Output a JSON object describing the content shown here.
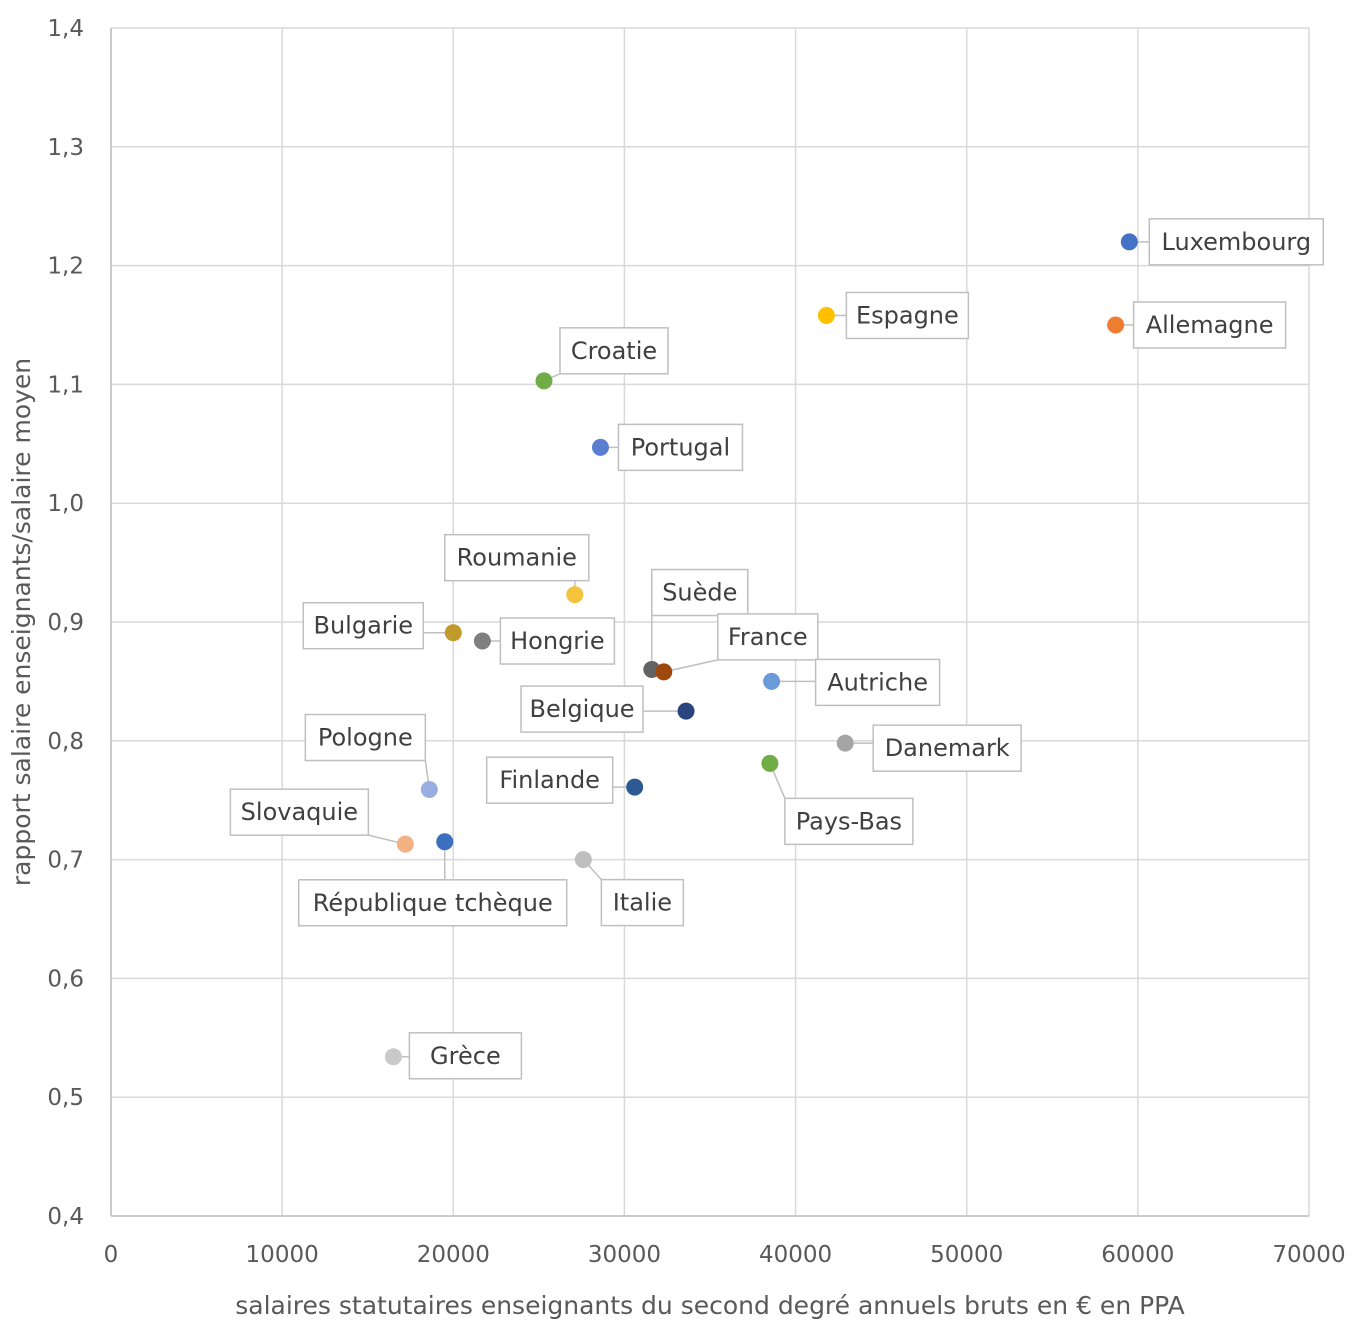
{
  "chart_data": {
    "type": "scatter",
    "title": "",
    "xlabel": "salaires statutaires enseignants du second degré annuels bruts en € en PPA",
    "ylabel": "rapport salaire enseignants/salaire moyen",
    "xlim": [
      0,
      70000
    ],
    "ylim": [
      0.4,
      1.4
    ],
    "grid": true,
    "legend": "none",
    "x_ticks": [
      "0",
      "10000",
      "20000",
      "30000",
      "40000",
      "50000",
      "60000",
      "70000"
    ],
    "y_ticks": [
      "0,4",
      "0,5",
      "0,6",
      "0,7",
      "0,8",
      "0,9",
      "1,0",
      "1,1",
      "1,2",
      "1,3",
      "1,4"
    ],
    "points": [
      {
        "label": "Luxembourg",
        "x": 59500,
        "y": 1.22,
        "color": "#4472C4"
      },
      {
        "label": "Allemagne",
        "x": 58700,
        "y": 1.15,
        "color": "#ED7D31"
      },
      {
        "label": "Espagne",
        "x": 41800,
        "y": 1.158,
        "color": "#FFC000"
      },
      {
        "label": "Croatie",
        "x": 25300,
        "y": 1.103,
        "color": "#70AD47"
      },
      {
        "label": "Portugal",
        "x": 28600,
        "y": 1.047,
        "color": "#5B7FD0"
      },
      {
        "label": "Roumanie",
        "x": 27100,
        "y": 0.923,
        "color": "#F5C33B"
      },
      {
        "label": "Bulgarie",
        "x": 20000,
        "y": 0.891,
        "color": "#C09A2A"
      },
      {
        "label": "Hongrie",
        "x": 21700,
        "y": 0.884,
        "color": "#7F7F7F"
      },
      {
        "label": "Suède",
        "x": 31600,
        "y": 0.86,
        "color": "#636363"
      },
      {
        "label": "France",
        "x": 32300,
        "y": 0.858,
        "color": "#9E480E"
      },
      {
        "label": "Autriche",
        "x": 38600,
        "y": 0.85,
        "color": "#6A9BD8"
      },
      {
        "label": "Belgique",
        "x": 33600,
        "y": 0.825,
        "color": "#2A4480"
      },
      {
        "label": "Danemark",
        "x": 42900,
        "y": 0.798,
        "color": "#A5A5A5"
      },
      {
        "label": "Pays-Bas",
        "x": 38500,
        "y": 0.781,
        "color": "#70AD47"
      },
      {
        "label": "Finlande",
        "x": 30600,
        "y": 0.761,
        "color": "#2E5A94"
      },
      {
        "label": "Pologne",
        "x": 18600,
        "y": 0.759,
        "color": "#98AEE0"
      },
      {
        "label": "République tchèque",
        "x": 19500,
        "y": 0.715,
        "color": "#3D6FBF"
      },
      {
        "label": "Slovaquie",
        "x": 17200,
        "y": 0.713,
        "color": "#F2B083"
      },
      {
        "label": "Italie",
        "x": 27600,
        "y": 0.7,
        "color": "#BFBFBF"
      },
      {
        "label": "Grèce",
        "x": 16500,
        "y": 0.534,
        "color": "#C9C9C9"
      }
    ]
  }
}
